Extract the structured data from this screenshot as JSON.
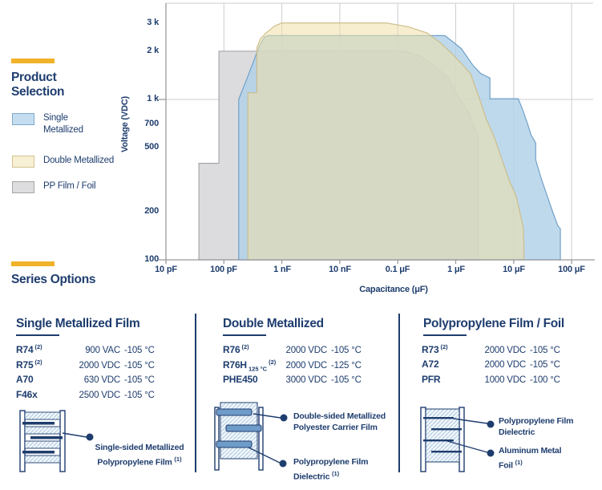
{
  "brand": {
    "navy": "#1E3D6E",
    "yellow": "#F0B229"
  },
  "legend": {
    "title_lines": [
      "Product",
      "Selection"
    ],
    "items": [
      {
        "label": "Single Metallized",
        "fill": "#C5DEEF",
        "border": "#7FA8CC"
      },
      {
        "label": "Double Metallized",
        "fill": "#F7F0D4",
        "border": "#D2C28F"
      },
      {
        "label": "PP Film / Foil",
        "fill": "#DDDDDF",
        "border": "#A6A6A9"
      }
    ]
  },
  "series_options": {
    "title": "Series Options"
  },
  "chart_data": {
    "type": "area",
    "title": "Product Selection voltage vs capacitance operating regions",
    "x_axis": {
      "label": "Capacitance (μF)",
      "scale": "log",
      "ticks": [
        {
          "label": "10 pF",
          "value": 1e-05
        },
        {
          "label": "100 pF",
          "value": 0.0001
        },
        {
          "label": "1 nF",
          "value": 0.001
        },
        {
          "label": "10 nF",
          "value": 0.01
        },
        {
          "label": "0.1 μF",
          "value": 0.1
        },
        {
          "label": "1 μF",
          "value": 1
        },
        {
          "label": "10 μF",
          "value": 10
        },
        {
          "label": "100 μF",
          "value": 100
        }
      ]
    },
    "y_axis": {
      "label": "Voltage (VDC)",
      "scale": "log",
      "ticks": [
        {
          "label": "100",
          "value": 100
        },
        {
          "label": "200",
          "value": 200
        },
        {
          "label": "500",
          "value": 500
        },
        {
          "label": "700",
          "value": 700
        },
        {
          "label": "1 k",
          "value": 1000
        },
        {
          "label": "2 k",
          "value": 2000
        },
        {
          "label": "3 k",
          "value": 3000
        }
      ],
      "gridline_values": [
        1000
      ],
      "outward_tick_values": [
        100,
        1000
      ]
    },
    "regions": [
      {
        "id": "pp-film-foil",
        "name": "PP Film / Foil",
        "fill": "#DCDCDE",
        "opacity": 1,
        "stroke": "#A4A4A8",
        "points": [
          [
            3.7e-05,
            100
          ],
          [
            3.7e-05,
            400
          ],
          [
            8.2e-05,
            400
          ],
          [
            8.2e-05,
            2000
          ],
          [
            0.13,
            2000
          ],
          [
            0.25,
            1850
          ],
          [
            0.45,
            1600
          ],
          [
            0.75,
            1350
          ],
          [
            1.1,
            1050
          ],
          [
            1.6,
            850
          ],
          [
            2.0,
            700
          ],
          [
            2.45,
            590
          ],
          [
            2.45,
            100
          ]
        ]
      },
      {
        "id": "single-metallized",
        "name": "Single Metallized",
        "fill": "#AFD0E7",
        "opacity": 0.8,
        "stroke": "#6B9DC6",
        "points": [
          [
            0.00018,
            100
          ],
          [
            0.00018,
            1000
          ],
          [
            0.00026,
            1400
          ],
          [
            0.00034,
            1800
          ],
          [
            0.00042,
            2200
          ],
          [
            0.0005,
            2450
          ],
          [
            0.00058,
            2500
          ],
          [
            0.65,
            2500
          ],
          [
            0.9,
            2280
          ],
          [
            1.25,
            2075
          ],
          [
            2,
            1625
          ],
          [
            2.7,
            1450
          ],
          [
            3.9,
            1360
          ],
          [
            3.9,
            1010
          ],
          [
            12,
            1010
          ],
          [
            14,
            880
          ],
          [
            17,
            720
          ],
          [
            20,
            600
          ],
          [
            24,
            535
          ],
          [
            24,
            420
          ],
          [
            30,
            320
          ],
          [
            38,
            250
          ],
          [
            48,
            195
          ],
          [
            58,
            163
          ],
          [
            64,
            156
          ],
          [
            64,
            100
          ]
        ]
      },
      {
        "id": "double-metallized",
        "name": "Double Metallized",
        "fill": "#EFE0A8",
        "opacity": 0.55,
        "stroke": "#CCBC88",
        "points": [
          [
            0.00026,
            100
          ],
          [
            0.00026,
            1100
          ],
          [
            0.00037,
            1100
          ],
          [
            0.00037,
            2100
          ],
          [
            0.00043,
            2400
          ],
          [
            0.00055,
            2620
          ],
          [
            0.00075,
            2870
          ],
          [
            0.001,
            3000
          ],
          [
            0.064,
            3000
          ],
          [
            0.15,
            2840
          ],
          [
            0.32,
            2600
          ],
          [
            0.55,
            2250
          ],
          [
            0.9,
            1900
          ],
          [
            1.3,
            1650
          ],
          [
            1.8,
            1445
          ],
          [
            2.6,
            1000
          ],
          [
            3.4,
            750
          ],
          [
            4.7,
            575
          ],
          [
            6.3,
            420
          ],
          [
            8.4,
            313
          ],
          [
            11,
            250
          ],
          [
            14.6,
            160
          ],
          [
            15,
            125
          ],
          [
            15,
            100
          ]
        ]
      }
    ]
  },
  "columns": [
    {
      "heading": "Single Metallized Film",
      "rows": [
        {
          "name": "R74",
          "sup": "(2)",
          "volt": "900 VAC",
          "temp": "-105 °C"
        },
        {
          "name": "R75",
          "sup": "(2)",
          "volt": "2000 VDC",
          "temp": "-105 °C"
        },
        {
          "name": "A70",
          "volt": "630 VDC",
          "temp": "-105 °C"
        },
        {
          "name": "F46x",
          "volt": "2500 VDC",
          "temp": "-105 °C"
        }
      ],
      "callouts": [
        {
          "line1": "Single-sided Metallized",
          "line2": "Polypropylene Film",
          "sup": "(1)"
        }
      ]
    },
    {
      "heading": "Double Metallized",
      "rows": [
        {
          "name": "R76",
          "sup": "(2)",
          "volt": "2000 VDC",
          "temp": "-105 °C"
        },
        {
          "name": "R76H",
          "sub": "125 °C",
          "sup": "(2)",
          "volt": "2000 VDC",
          "temp": "-125 °C"
        },
        {
          "name": "PHE450",
          "volt": "3000 VDC",
          "temp": "-105 °C"
        }
      ],
      "callouts": [
        {
          "line1": "Double-sided Metallized",
          "line2": "Polyester Carrier Film"
        },
        {
          "line1": "Polypropylene Film",
          "line2": "Dielectric",
          "sup": "(1)"
        }
      ]
    },
    {
      "heading": "Polypropylene Film / Foil",
      "rows": [
        {
          "name": "R73",
          "sup": "(2)",
          "volt": "2000 VDC",
          "temp": "-105 °C"
        },
        {
          "name": "A72",
          "volt": "2000 VDC",
          "temp": "-105 °C"
        },
        {
          "name": "PFR",
          "volt": "1000 VDC",
          "temp": "-100 °C"
        }
      ],
      "callouts": [
        {
          "line1": "Polypropylene Film",
          "line2": "Dielectric"
        },
        {
          "line1": "Aluminum Metal",
          "line2": "Foil",
          "sup": "(1)"
        }
      ]
    }
  ]
}
